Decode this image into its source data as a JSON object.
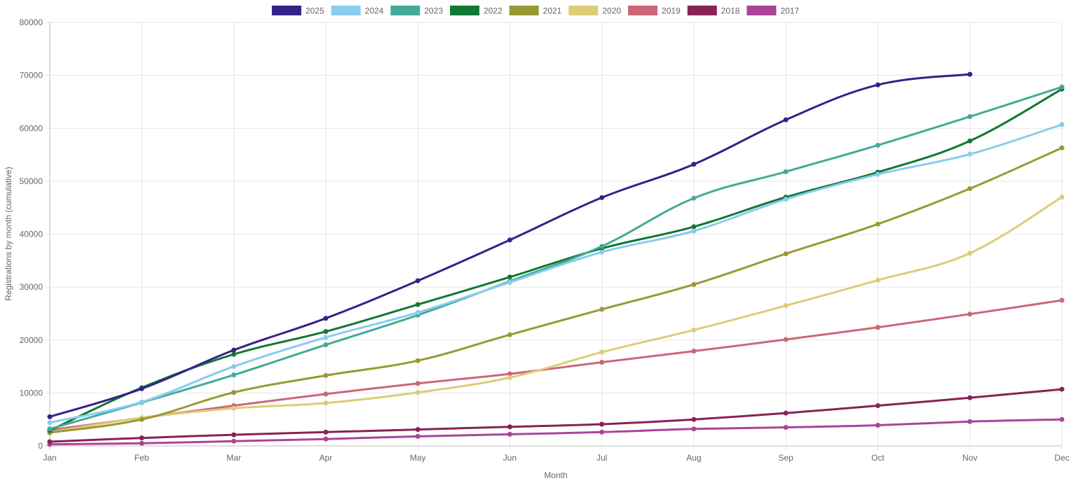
{
  "chart_data": {
    "type": "line",
    "xlabel": "Month",
    "ylabel": "Registrations by month (cumulative)",
    "categories": [
      "Jan",
      "Feb",
      "Mar",
      "Apr",
      "May",
      "Jun",
      "Jul",
      "Aug",
      "Sep",
      "Oct",
      "Nov",
      "Dec"
    ],
    "ylim": [
      0,
      80000
    ],
    "yticks": [
      0,
      10000,
      20000,
      30000,
      40000,
      50000,
      60000,
      70000,
      80000
    ],
    "grid": true,
    "legend_position": "top",
    "series": [
      {
        "name": "2025",
        "color": "#332288",
        "values": [
          5500,
          10800,
          18100,
          24100,
          31200,
          38900,
          46900,
          53200,
          61600,
          68200,
          70200,
          null
        ]
      },
      {
        "name": "2024",
        "color": "#88ccee",
        "values": [
          4400,
          8300,
          15000,
          20500,
          25200,
          30900,
          36600,
          40600,
          46600,
          51300,
          55100,
          60700
        ]
      },
      {
        "name": "2023",
        "color": "#44aa99",
        "values": [
          3200,
          8200,
          13400,
          19100,
          24700,
          31100,
          37700,
          46800,
          51800,
          56800,
          62200,
          67800
        ]
      },
      {
        "name": "2022",
        "color": "#117733",
        "values": [
          2900,
          11000,
          17300,
          21600,
          26700,
          31900,
          37300,
          41400,
          47000,
          51700,
          57600,
          67400
        ]
      },
      {
        "name": "2021",
        "color": "#999933",
        "values": [
          2500,
          5000,
          10100,
          13300,
          16100,
          21000,
          25800,
          30500,
          36300,
          41900,
          48600,
          56300
        ]
      },
      {
        "name": "2020",
        "color": "#ddcc77",
        "values": [
          2600,
          5300,
          7100,
          8100,
          10100,
          12900,
          17700,
          21900,
          26500,
          31300,
          36400,
          47000
        ]
      },
      {
        "name": "2019",
        "color": "#cc6677",
        "values": [
          3000,
          5300,
          7600,
          9800,
          11800,
          13600,
          15800,
          17900,
          20100,
          22400,
          24900,
          27500
        ]
      },
      {
        "name": "2018",
        "color": "#882255",
        "values": [
          800,
          1500,
          2100,
          2600,
          3100,
          3600,
          4100,
          5000,
          6200,
          7600,
          9100,
          10700
        ]
      },
      {
        "name": "2017",
        "color": "#aa4499",
        "values": [
          300,
          500,
          900,
          1300,
          1800,
          2200,
          2600,
          3200,
          3500,
          3900,
          4600,
          5000
        ]
      }
    ]
  }
}
